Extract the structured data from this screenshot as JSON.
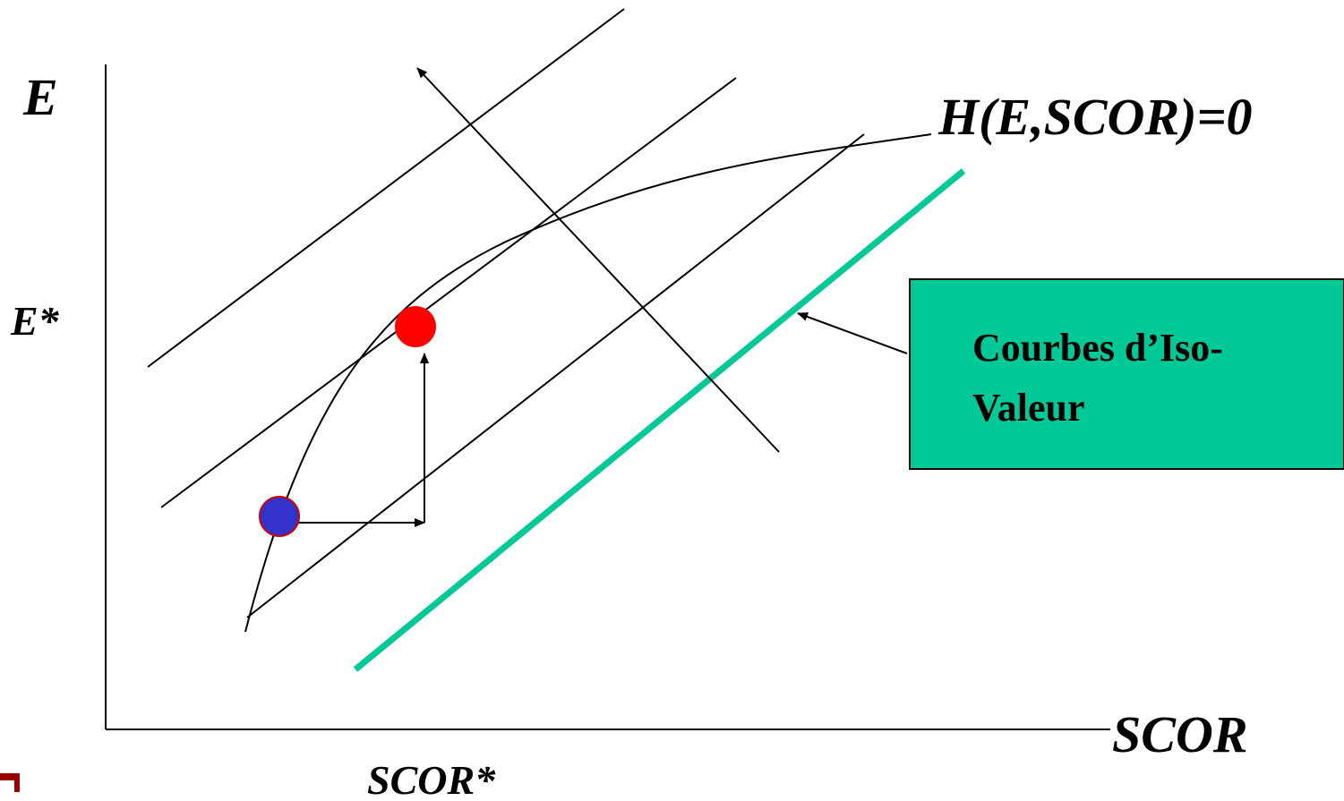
{
  "labels": {
    "y_axis": "E",
    "y_marker": "E*",
    "x_axis": "SCOR",
    "x_marker": "SCOR*",
    "curve": "H(E,SCOR)=0"
  },
  "callout": {
    "line1": "Courbes d’Iso-",
    "line2": "Valeur"
  },
  "colors": {
    "line": "#000000",
    "iso_value_highlight": "#00c896",
    "callout_fill": "#00c896",
    "optimum_point": "#ff0000",
    "start_point": "#3333cc",
    "start_point_border": "#cc0000",
    "corner_mark": "#990000"
  }
}
